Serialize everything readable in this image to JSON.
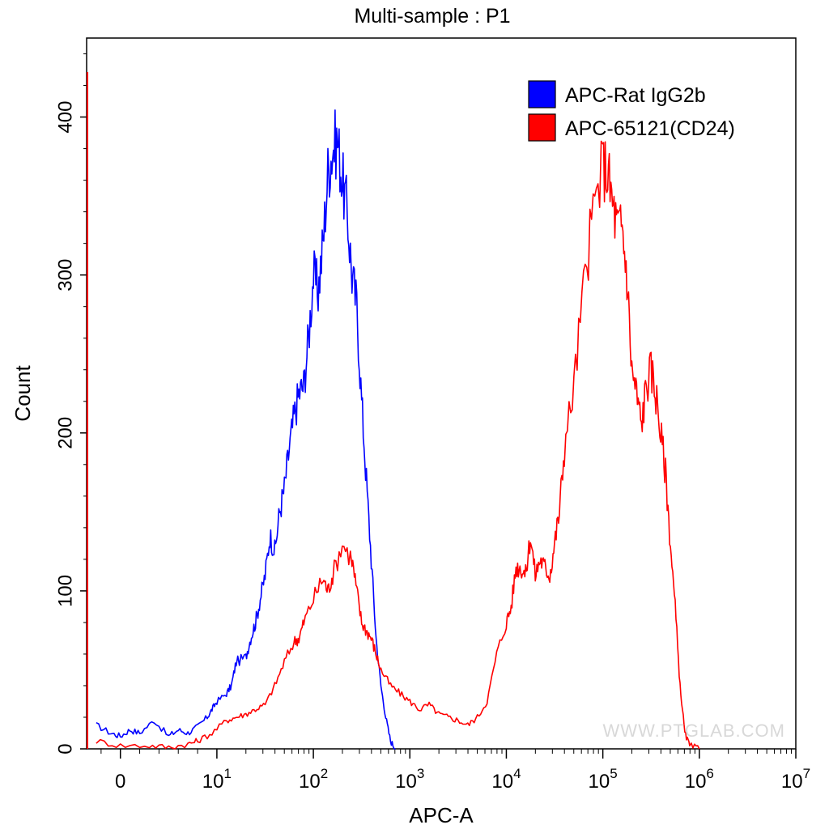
{
  "chart_data": {
    "type": "line",
    "title": "Multi-sample : P1",
    "xlabel": "APC-A",
    "ylabel": "Count",
    "xscale": "biexponential-log",
    "xlim": [
      -50,
      10000000
    ],
    "ylim": [
      0,
      450
    ],
    "y_ticks": [
      0,
      100,
      200,
      300,
      400
    ],
    "x_ticks": [
      {
        "value": 0,
        "base": "0",
        "exp": ""
      },
      {
        "value": 10,
        "base": "10",
        "exp": "1"
      },
      {
        "value": 100,
        "base": "10",
        "exp": "2"
      },
      {
        "value": 1000,
        "base": "10",
        "exp": "3"
      },
      {
        "value": 10000,
        "base": "10",
        "exp": "4"
      },
      {
        "value": 100000,
        "base": "10",
        "exp": "5"
      },
      {
        "value": 1000000,
        "base": "10",
        "exp": "6"
      },
      {
        "value": 10000000,
        "base": "10",
        "exp": "7"
      }
    ],
    "legend": {
      "position": "top-right"
    },
    "series": [
      {
        "name": "APC-Rat IgG2b",
        "color": "#0000ff",
        "points": [
          [
            -0.25,
            15
          ],
          [
            -0.1,
            10
          ],
          [
            0,
            8
          ],
          [
            0.1,
            12
          ],
          [
            0.2,
            10
          ],
          [
            0.35,
            18
          ],
          [
            0.5,
            8
          ],
          [
            0.6,
            12
          ],
          [
            0.7,
            10
          ],
          [
            0.8,
            14
          ],
          [
            0.9,
            20
          ],
          [
            0.95,
            25
          ],
          [
            1.0,
            30
          ],
          [
            1.1,
            35
          ],
          [
            1.15,
            40
          ],
          [
            1.2,
            55
          ],
          [
            1.3,
            58
          ],
          [
            1.35,
            70
          ],
          [
            1.4,
            80
          ],
          [
            1.45,
            95
          ],
          [
            1.5,
            110
          ],
          [
            1.55,
            135
          ],
          [
            1.6,
            125
          ],
          [
            1.65,
            150
          ],
          [
            1.7,
            165
          ],
          [
            1.75,
            190
          ],
          [
            1.8,
            210
          ],
          [
            1.85,
            225
          ],
          [
            1.9,
            230
          ],
          [
            1.95,
            260
          ],
          [
            2.0,
            300
          ],
          [
            2.05,
            290
          ],
          [
            2.1,
            320
          ],
          [
            2.15,
            365
          ],
          [
            2.2,
            380
          ],
          [
            2.25,
            385
          ],
          [
            2.3,
            360
          ],
          [
            2.35,
            340
          ],
          [
            2.4,
            300
          ],
          [
            2.45,
            280
          ],
          [
            2.5,
            220
          ],
          [
            2.55,
            170
          ],
          [
            2.6,
            120
          ],
          [
            2.65,
            70
          ],
          [
            2.7,
            40
          ],
          [
            2.75,
            20
          ],
          [
            2.8,
            5
          ],
          [
            2.85,
            0
          ]
        ]
      },
      {
        "name": "APC-65121(CD24)",
        "color": "#ff0000",
        "points": [
          [
            -0.25,
            5
          ],
          [
            0,
            2
          ],
          [
            0.3,
            2
          ],
          [
            0.5,
            1
          ],
          [
            0.7,
            3
          ],
          [
            0.8,
            5
          ],
          [
            0.95,
            10
          ],
          [
            1.1,
            18
          ],
          [
            1.2,
            20
          ],
          [
            1.3,
            22
          ],
          [
            1.4,
            25
          ],
          [
            1.5,
            28
          ],
          [
            1.6,
            40
          ],
          [
            1.7,
            55
          ],
          [
            1.8,
            68
          ],
          [
            1.85,
            70
          ],
          [
            1.9,
            80
          ],
          [
            2.0,
            95
          ],
          [
            2.1,
            108
          ],
          [
            2.15,
            100
          ],
          [
            2.2,
            110
          ],
          [
            2.3,
            130
          ],
          [
            2.4,
            120
          ],
          [
            2.45,
            100
          ],
          [
            2.5,
            80
          ],
          [
            2.55,
            75
          ],
          [
            2.6,
            70
          ],
          [
            2.65,
            60
          ],
          [
            2.7,
            50
          ],
          [
            2.8,
            40
          ],
          [
            2.9,
            35
          ],
          [
            3.0,
            30
          ],
          [
            3.1,
            25
          ],
          [
            3.2,
            28
          ],
          [
            3.3,
            22
          ],
          [
            3.4,
            20
          ],
          [
            3.5,
            18
          ],
          [
            3.6,
            15
          ],
          [
            3.7,
            20
          ],
          [
            3.8,
            30
          ],
          [
            3.9,
            60
          ],
          [
            4.0,
            80
          ],
          [
            4.05,
            90
          ],
          [
            4.1,
            115
          ],
          [
            4.15,
            115
          ],
          [
            4.2,
            110
          ],
          [
            4.25,
            135
          ],
          [
            4.3,
            110
          ],
          [
            4.35,
            120
          ],
          [
            4.4,
            115
          ],
          [
            4.45,
            110
          ],
          [
            4.5,
            130
          ],
          [
            4.55,
            150
          ],
          [
            4.6,
            190
          ],
          [
            4.7,
            230
          ],
          [
            4.8,
            290
          ],
          [
            4.9,
            340
          ],
          [
            5.0,
            370
          ],
          [
            5.05,
            365
          ],
          [
            5.1,
            345
          ],
          [
            5.15,
            330
          ],
          [
            5.2,
            330
          ],
          [
            5.25,
            300
          ],
          [
            5.3,
            240
          ],
          [
            5.35,
            225
          ],
          [
            5.4,
            205
          ],
          [
            5.45,
            230
          ],
          [
            5.5,
            240
          ],
          [
            5.55,
            225
          ],
          [
            5.6,
            200
          ],
          [
            5.65,
            175
          ],
          [
            5.7,
            130
          ],
          [
            5.75,
            90
          ],
          [
            5.8,
            40
          ],
          [
            5.85,
            10
          ],
          [
            5.9,
            2
          ],
          [
            6.0,
            0
          ]
        ]
      }
    ]
  },
  "watermark": "WWW.PTGLAB.COM"
}
